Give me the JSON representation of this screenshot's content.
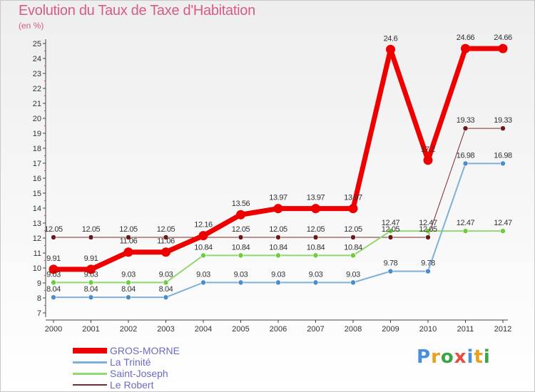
{
  "title": "Evolution du Taux de Taxe d'Habitation",
  "subtitle": "(en %)",
  "brand": {
    "letters": [
      "P",
      "r",
      "o",
      "x",
      "i",
      "t",
      "i"
    ],
    "colors": [
      "#4a90d9",
      "#e8a020",
      "#3aa545",
      "#e84c3d",
      "#4a90d9",
      "#e8a020",
      "#3aa545"
    ]
  },
  "chart_data": {
    "type": "line",
    "x": [
      "2000",
      "2001",
      "2002",
      "2003",
      "2004",
      "2005",
      "2006",
      "2007",
      "2008",
      "2009",
      "2010",
      "2011",
      "2012"
    ],
    "ylim": [
      7,
      25
    ],
    "yticks": [
      7,
      8,
      9,
      10,
      11,
      12,
      13,
      14,
      15,
      16,
      17,
      18,
      19,
      20,
      21,
      22,
      23,
      24,
      25
    ],
    "grid": false,
    "legend_position": "bottom-left",
    "series": [
      {
        "name": "Le Robert",
        "color": "#7a2a2a",
        "width": 1,
        "dot": 3.5,
        "dotColor": "#6a1a1a",
        "values": [
          12.05,
          12.05,
          12.05,
          12.05,
          12.05,
          12.05,
          12.05,
          12.05,
          12.05,
          12.05,
          12.05,
          19.33,
          19.33
        ],
        "labels": [
          "12.05",
          "12.05",
          "12.05",
          "12.05",
          "",
          "12.05",
          "12.05",
          "12.05",
          "12.05",
          "12.05",
          "12.05",
          "19.33",
          "19.33"
        ]
      },
      {
        "name": "Saint-Joseph",
        "color": "#90d870",
        "width": 2,
        "dot": 3.5,
        "dotColor": "#6ccc3c",
        "values": [
          9.03,
          9.03,
          9.03,
          9.03,
          10.84,
          10.84,
          10.84,
          10.84,
          10.84,
          12.47,
          12.47,
          12.47,
          12.47
        ],
        "labels": [
          "9.03",
          "9.03",
          "9.03",
          "9.03",
          "10.84",
          "10.84",
          "10.84",
          "10.84",
          "10.84",
          "12.47",
          "12.47",
          "12.47",
          "12.47"
        ]
      },
      {
        "name": "La Trinité",
        "color": "#7fb0d8",
        "width": 2,
        "dot": 3.5,
        "dotColor": "#4c8cc8",
        "values": [
          8.04,
          8.04,
          8.04,
          8.04,
          9.03,
          9.03,
          9.03,
          9.03,
          9.03,
          9.78,
          9.78,
          16.98,
          16.98
        ],
        "labels": [
          "8.04",
          "8.04",
          "8.04",
          "8.04",
          "9.03",
          "9.03",
          "9.03",
          "9.03",
          "9.03",
          "9.78",
          "9.78",
          "16.98",
          "16.98"
        ]
      },
      {
        "name": "GROS-MORNE",
        "color": "#ee0000",
        "width": 7,
        "dot": 6.5,
        "dotColor": "#ee0000",
        "values": [
          9.91,
          9.91,
          11.06,
          11.06,
          12.16,
          13.56,
          13.97,
          13.97,
          13.97,
          24.6,
          17.2,
          24.66,
          24.66
        ],
        "labels": [
          "9.91",
          "9.91",
          "11.06",
          "11.06",
          "12.16",
          "13.56",
          "13.97",
          "13.97",
          "13.97",
          "24.6",
          "17.2",
          "24.66",
          "24.66"
        ]
      }
    ],
    "legend_order": [
      "GROS-MORNE",
      "La Trinité",
      "Saint-Joseph",
      "Le Robert"
    ]
  }
}
